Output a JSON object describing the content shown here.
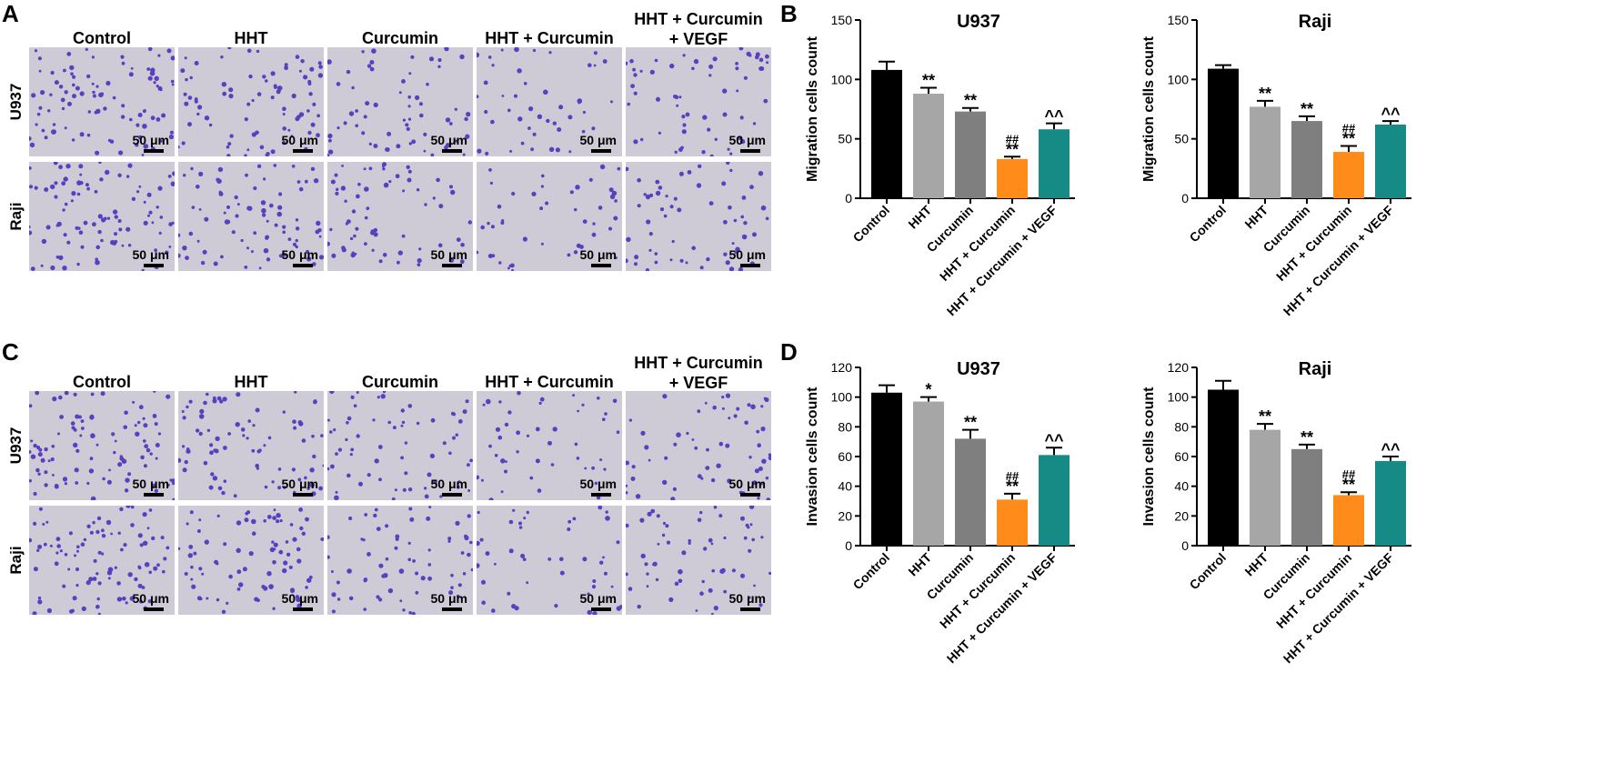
{
  "panels": {
    "A": "A",
    "B": "B",
    "C": "C",
    "D": "D"
  },
  "micrographs": {
    "migration": {
      "columns": [
        "Control",
        "HHT",
        "Curcumin",
        "HHT + Curcumin",
        "HHT + Curcumin\n+ VEGF"
      ],
      "rows": [
        "U937",
        "Raji"
      ],
      "scale_label": "50 μm"
    },
    "invasion": {
      "columns": [
        "Control",
        "HHT",
        "Curcumin",
        "HHT + Curcumin",
        "HHT + Curcumin\n+ VEGF"
      ],
      "rows": [
        "U937",
        "Raji"
      ],
      "scale_label": "50 μm"
    }
  },
  "colors": {
    "Control": "#000000",
    "HHT": "#a6a6a6",
    "Curcumin": "#7f7f7f",
    "HHT + Curcumin": "#ff8c1a",
    "HHT + Curcumin + VEGF": "#168a85",
    "cell": "#5a3fc0",
    "background": "#cfcbd6"
  },
  "chart_data": [
    {
      "type": "bar",
      "panel": "B",
      "title": "U937",
      "ylabel": "Migration cells count",
      "categories": [
        "Control",
        "HHT",
        "Curcumin",
        "HHT + Curcumin",
        "HHT + Curcumin + VEGF"
      ],
      "values": [
        108,
        88,
        73,
        33,
        58
      ],
      "errors": [
        7,
        5,
        3,
        2,
        5
      ],
      "annotations": [
        "",
        "**",
        "**",
        "##\n**",
        "^^"
      ],
      "ylim": [
        0,
        150
      ],
      "yticks": [
        0,
        50,
        100,
        150
      ]
    },
    {
      "type": "bar",
      "panel": "B",
      "title": "Raji",
      "ylabel": "Migration cells count",
      "categories": [
        "Control",
        "HHT",
        "Curcumin",
        "HHT + Curcumin",
        "HHT + Curcumin + VEGF"
      ],
      "values": [
        109,
        77,
        65,
        39,
        62
      ],
      "errors": [
        3,
        5,
        4,
        5,
        3
      ],
      "annotations": [
        "",
        "**",
        "**",
        "##\n**",
        "^^"
      ],
      "ylim": [
        0,
        150
      ],
      "yticks": [
        0,
        50,
        100,
        150
      ]
    },
    {
      "type": "bar",
      "panel": "D",
      "title": "U937",
      "ylabel": "Invasion cells count",
      "categories": [
        "Control",
        "HHT",
        "Curcumin",
        "HHT + Curcumin",
        "HHT + Curcumin + VEGF"
      ],
      "values": [
        103,
        97,
        72,
        31,
        61
      ],
      "errors": [
        5,
        3,
        6,
        4,
        5
      ],
      "annotations": [
        "",
        "*",
        "**",
        "##\n**",
        "^^"
      ],
      "ylim": [
        0,
        120
      ],
      "yticks": [
        0,
        20,
        40,
        60,
        80,
        100,
        120
      ]
    },
    {
      "type": "bar",
      "panel": "D",
      "title": "Raji",
      "ylabel": "Invasion cells count",
      "categories": [
        "Control",
        "HHT",
        "Curcumin",
        "HHT + Curcumin",
        "HHT + Curcumin + VEGF"
      ],
      "values": [
        105,
        78,
        65,
        34,
        57
      ],
      "errors": [
        6,
        4,
        3,
        2,
        3
      ],
      "annotations": [
        "",
        "**",
        "**",
        "##\n**",
        "^^"
      ],
      "ylim": [
        0,
        120
      ],
      "yticks": [
        0,
        20,
        40,
        60,
        80,
        100,
        120
      ]
    }
  ]
}
